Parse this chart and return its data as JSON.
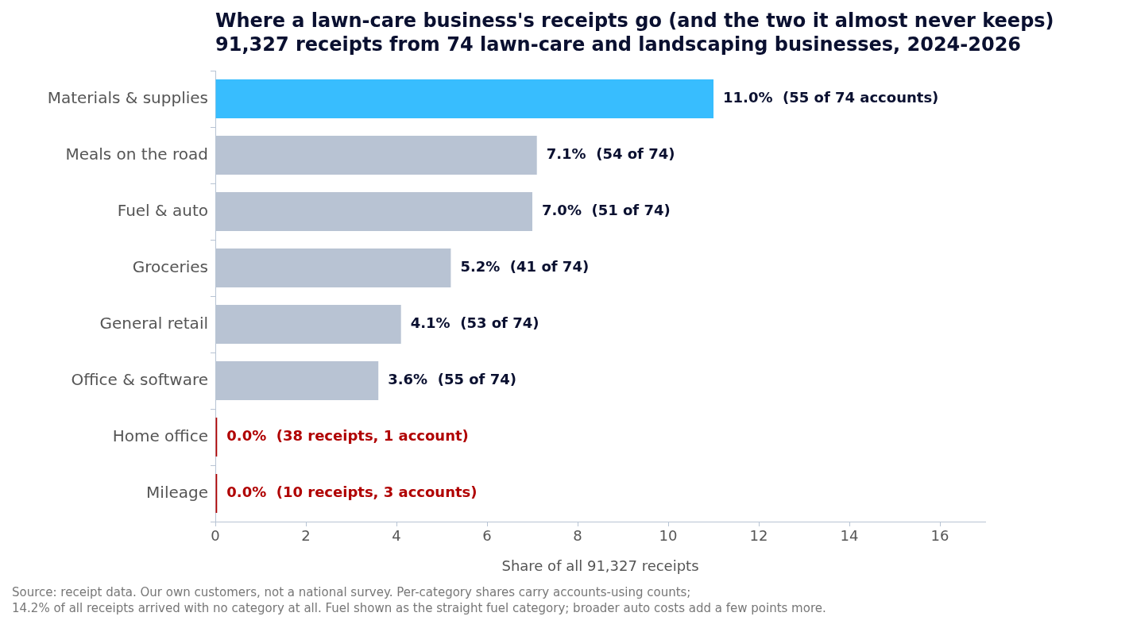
{
  "chart_data": {
    "type": "bar",
    "orientation": "horizontal",
    "title": "Where a lawn-care business's receipts go (and the two it almost never keeps)",
    "subtitle": "91,327 receipts from 74 lawn-care and landscaping businesses, 2024-2026",
    "xlabel": "Share of all 91,327 receipts",
    "categories": [
      "Materials & supplies",
      "Meals on the road",
      "Fuel & auto",
      "Groceries",
      "General retail",
      "Office & software",
      "Home office",
      "Mileage"
    ],
    "values": [
      11.0,
      7.1,
      7.0,
      5.2,
      4.1,
      3.6,
      0.04,
      0.04
    ],
    "colors": [
      "#38bdfe",
      "#b8c3d3",
      "#b8c3d3",
      "#b8c3d3",
      "#b8c3d3",
      "#b8c3d3",
      "#b00000",
      "#b00000"
    ],
    "value_labels": [
      "11.0%  (55 of 74 accounts)",
      "7.1%  (54 of 74)",
      "7.0%  (51 of 74)",
      "5.2%  (41 of 74)",
      "4.1%  (53 of 74)",
      "3.6%  (55 of 74)",
      "0.0%  (38 receipts, 1 account)",
      "0.0%  (10 receipts, 3 accounts)"
    ],
    "xlim": [
      0,
      17
    ],
    "xticks": [
      0,
      2,
      4,
      6,
      8,
      10,
      12,
      14,
      16
    ],
    "grid": false,
    "legend": false,
    "annotations": [
      "Source: receipt data. Our own customers, not a national survey. Per-category shares carry accounts-using counts;",
      "14.2% of all receipts arrived with no category at all. Fuel shown as the straight fuel category; broader auto costs add a few points more."
    ]
  }
}
